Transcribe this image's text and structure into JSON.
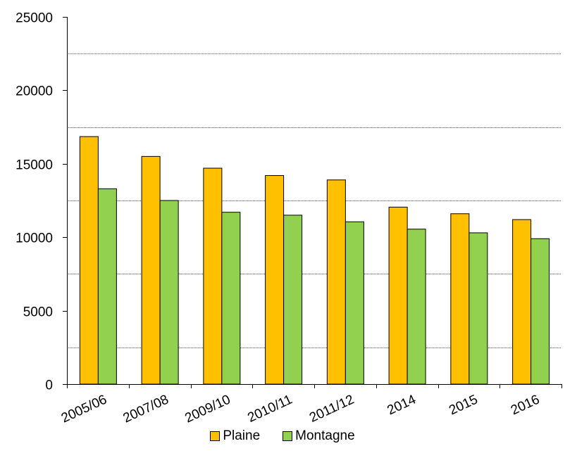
{
  "chart_data": {
    "type": "bar",
    "categories": [
      "2005/06",
      "2007/08",
      "2009/10",
      "2010/11",
      "2011/12",
      "2014",
      "2015",
      "2016"
    ],
    "series": [
      {
        "name": "Plaine",
        "color": "#FFC000",
        "values": [
          16850,
          15500,
          14700,
          14200,
          13900,
          12050,
          11600,
          11200
        ]
      },
      {
        "name": "Montagne",
        "color": "#92D050",
        "values": [
          13300,
          12500,
          11700,
          11500,
          11050,
          10550,
          10300,
          9900
        ]
      }
    ],
    "ylim": [
      0,
      25000
    ],
    "yticks": [
      0,
      5000,
      10000,
      15000,
      20000,
      25000
    ],
    "gridlines": [
      2500,
      7500,
      12500,
      17500,
      22500
    ],
    "xlabel": "",
    "ylabel": "",
    "legend_position": "bottom"
  },
  "legend": {
    "plaine_label": "Plaine",
    "montagne_label": "Montagne",
    "plaine_color": "#FFC000",
    "montagne_color": "#92D050"
  }
}
